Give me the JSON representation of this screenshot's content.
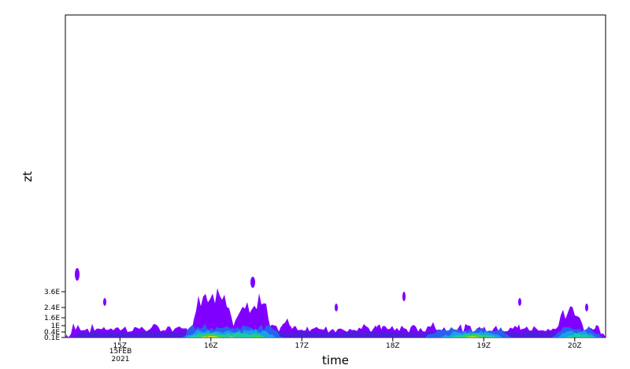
{
  "chart_data": {
    "type": "heatmap",
    "title": "",
    "xlabel": "time",
    "ylabel": "zt",
    "x_ticks": [
      {
        "label": "15Z",
        "hour": 15
      },
      {
        "label": "16Z",
        "hour": 16
      },
      {
        "label": "17Z",
        "hour": 17
      },
      {
        "label": "18Z",
        "hour": 18
      },
      {
        "label": "19Z",
        "hour": 19
      },
      {
        "label": "20Z",
        "hour": 20
      }
    ],
    "x_date_lines": [
      "15FEB",
      "2021"
    ],
    "y_ticks": [
      {
        "label": "3.6E",
        "value": 3.6
      },
      {
        "label": "2.4E",
        "value": 2.4
      },
      {
        "label": "1.6E",
        "value": 1.6
      },
      {
        "label": "1E",
        "value": 1.0
      },
      {
        "label": "0.4E",
        "value": 0.4
      },
      {
        "label": "0.1E",
        "value": 0.1
      }
    ],
    "color_scale": [
      "#8000ff",
      "#4a20d8",
      "#2a60f0",
      "#1aa0e8",
      "#20c8a0",
      "#40d040",
      "#b8e020",
      "#f0c000",
      "#f06000",
      "#e00000"
    ],
    "grid": false,
    "legend": "none"
  }
}
